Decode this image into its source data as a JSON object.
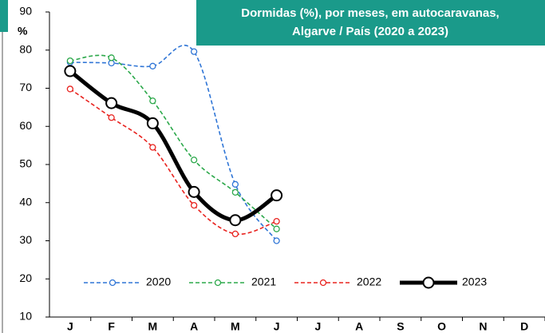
{
  "chart_data": {
    "type": "line",
    "title": [
      "Dormidas (%), por meses, em autocaravanas,",
      "Algarve / País (2020 a 2023)"
    ],
    "y_label": "%",
    "categories": [
      "J",
      "F",
      "M",
      "A",
      "M",
      "J",
      "J",
      "A",
      "S",
      "O",
      "N",
      "D"
    ],
    "series": [
      {
        "name": "2020",
        "color": "#2f75d6",
        "dashed": true,
        "values": [
          76.8,
          76.6,
          75.8,
          79.6,
          44.8,
          30.0,
          null,
          null,
          null,
          null,
          null,
          null
        ]
      },
      {
        "name": "2021",
        "color": "#2ba84a",
        "dashed": true,
        "values": [
          77.2,
          78.0,
          66.7,
          51.2,
          42.7,
          33.1,
          null,
          null,
          null,
          null,
          null,
          null
        ]
      },
      {
        "name": "2022",
        "color": "#e8231f",
        "dashed": true,
        "values": [
          69.8,
          62.3,
          54.5,
          39.3,
          31.8,
          35.1,
          null,
          null,
          null,
          null,
          null,
          null
        ]
      },
      {
        "name": "2023",
        "color": "#000000",
        "dashed": false,
        "values": [
          74.5,
          66.1,
          60.8,
          42.8,
          35.4,
          41.9,
          null,
          null,
          null,
          null,
          null,
          null
        ]
      }
    ],
    "ylim": [
      10,
      90
    ],
    "yticks": [
      10,
      20,
      30,
      40,
      50,
      60,
      70,
      80,
      90
    ],
    "grid": false,
    "legend": "bottom"
  }
}
